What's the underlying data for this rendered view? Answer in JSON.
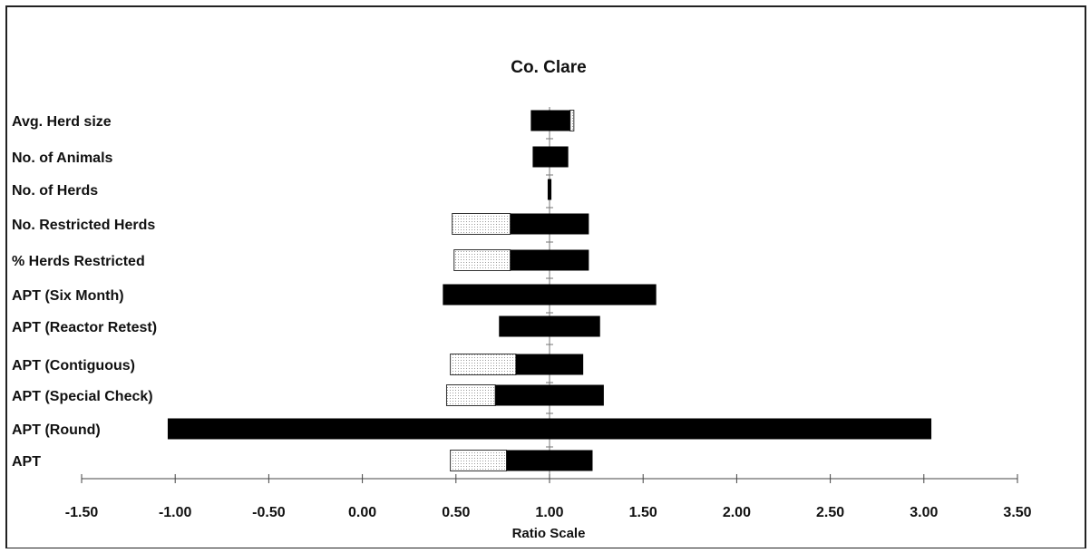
{
  "chart_data": {
    "type": "bar",
    "title": "Co. Clare",
    "xlabel": "Ratio Scale",
    "ylabel": "",
    "xlim": [
      -1.5,
      3.5
    ],
    "xticks": [
      -1.5,
      -1.0,
      -0.5,
      0.0,
      0.5,
      1.0,
      1.5,
      2.0,
      2.5,
      3.0,
      3.5
    ],
    "xtick_labels": [
      "-1.50",
      "-1.00",
      "-0.50",
      "0.00",
      "0.50",
      "1.00",
      "1.50",
      "2.00",
      "2.50",
      "3.00",
      "3.50"
    ],
    "reference_line": 1.0,
    "categories": [
      "Avg. Herd size",
      "No. of Animals",
      "No. of Herds",
      "No. Restricted Herds",
      "% Herds Restricted",
      "APT (Six Month)",
      "APT (Reactor Retest)",
      "APT (Contiguous)",
      "APT (Special Check)",
      "APT (Round)",
      "APT"
    ],
    "series": [
      {
        "values": [
          [
            0.9,
            1.11
          ],
          [
            0.91,
            1.1
          ],
          [
            0.99,
            1.01
          ],
          [
            0.79,
            1.21
          ],
          [
            0.79,
            1.21
          ],
          [
            0.43,
            1.57
          ],
          [
            0.73,
            1.27
          ],
          [
            0.82,
            1.18
          ],
          [
            0.71,
            1.29
          ],
          [
            -1.04,
            3.04
          ],
          [
            0.77,
            1.23
          ]
        ],
        "color": "#000000",
        "pattern": "solid"
      },
      {
        "values": [
          [
            1.11,
            1.13
          ],
          null,
          null,
          [
            0.48,
            0.79
          ],
          [
            0.49,
            0.79
          ],
          null,
          null,
          [
            0.47,
            0.82
          ],
          [
            0.45,
            0.71
          ],
          null,
          [
            0.47,
            0.77
          ]
        ],
        "color": "#ffffff",
        "pattern": "dotted"
      }
    ],
    "grid": false,
    "legend": "none"
  }
}
